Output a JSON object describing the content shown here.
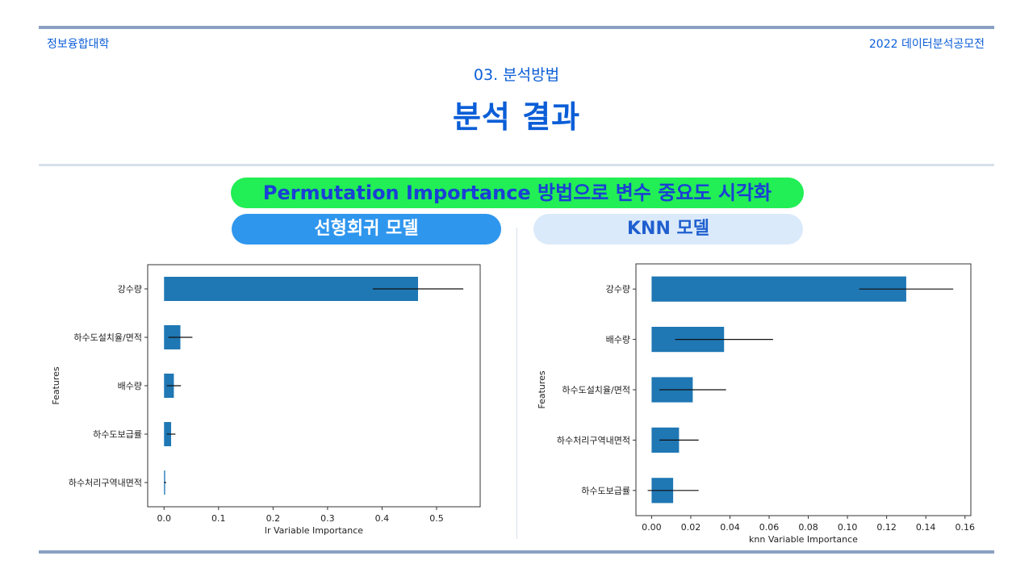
{
  "header": {
    "school": "정보융합대학",
    "contest": "2022 데이터분석공모전",
    "subtitle": "03. 분석방법",
    "title": "분석 결과"
  },
  "banner": {
    "main": "Permutation Importance 방법으로 변수 중요도 시각화",
    "lr_model": "선형회귀 모델",
    "knn_model": "KNN 모델"
  },
  "colors": {
    "accent_blue": "#0b5ed7",
    "line_blue": "#8aa0c3",
    "divider": "#d6e0ea",
    "banner_green": "#22ee55",
    "banner_text": "#1a3fd6",
    "lr_pill": "#2f96ee",
    "knn_pill": "#dbeafa",
    "knn_pill_text": "#1f5fcf",
    "bar": "#1f77b4"
  },
  "chart_data": [
    {
      "type": "bar",
      "orientation": "horizontal",
      "categories": [
        "강수량",
        "하수도설치율/면적",
        "배수량",
        "하수도보급률",
        "하수처리구역내면적"
      ],
      "values": [
        0.466,
        0.03,
        0.018,
        0.013,
        0.002
      ],
      "errors": [
        0.083,
        0.022,
        0.013,
        0.008,
        0.002
      ],
      "xlabel": "lr Variable Importance",
      "ylabel": "Features",
      "xlim": [
        -0.03,
        0.58
      ],
      "xticks": [
        "0.0",
        "0.1",
        "0.2",
        "0.3",
        "0.4",
        "0.5"
      ],
      "grid": false
    },
    {
      "type": "bar",
      "orientation": "horizontal",
      "categories": [
        "강수량",
        "배수량",
        "하수도설치율/면적",
        "하수처리구역내면적",
        "하수도보급률"
      ],
      "values": [
        0.13,
        0.037,
        0.021,
        0.014,
        0.011
      ],
      "errors": [
        0.024,
        0.025,
        0.017,
        0.01,
        0.013
      ],
      "xlabel": "knn Variable Importance",
      "ylabel": "Features",
      "xlim": [
        -0.008,
        0.163
      ],
      "xticks": [
        "0.00",
        "0.02",
        "0.04",
        "0.06",
        "0.08",
        "0.10",
        "0.12",
        "0.14",
        "0.16"
      ],
      "grid": false
    }
  ]
}
